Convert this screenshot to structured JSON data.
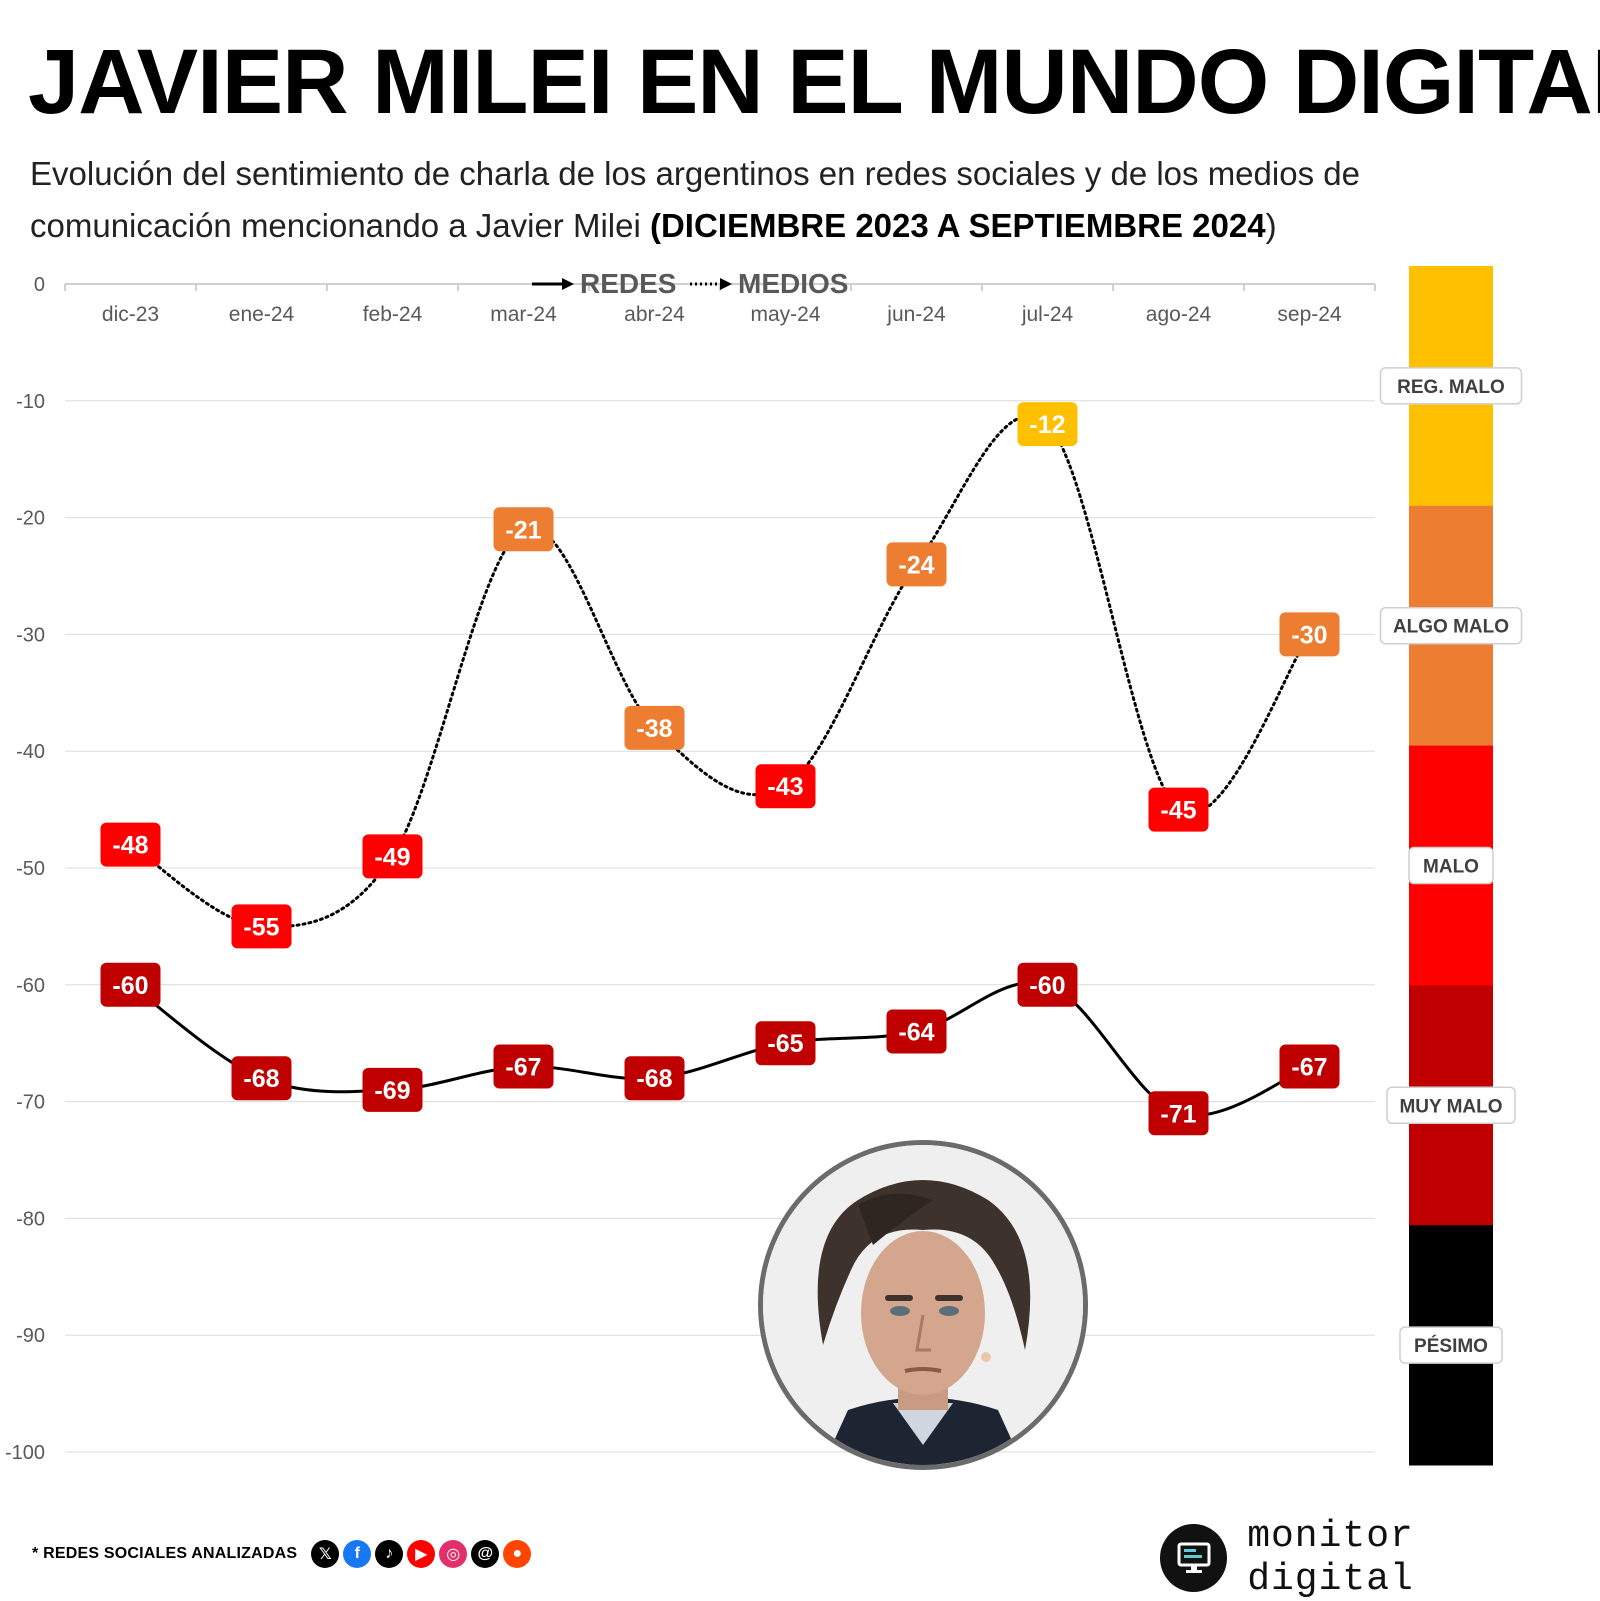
{
  "header": {
    "title": "JAVIER MILEI EN EL MUNDO DIGITAL",
    "subtitle_main": "Evolución del sentimiento de charla de los argentinos en redes sociales y de los medios de comunicación mencionando a Javier Milei ",
    "subtitle_bold": "(DICIEMBRE 2023 A SEPTIEMBRE 2024",
    "subtitle_end": ")"
  },
  "chart_data": {
    "type": "line",
    "title": "JAVIER MILEI EN EL MUNDO DIGITAL",
    "categories": [
      "dic-23",
      "ene-24",
      "feb-24",
      "mar-24",
      "abr-24",
      "may-24",
      "jun-24",
      "jul-24",
      "ago-24",
      "sep-24"
    ],
    "series": [
      {
        "name": "REDES",
        "style": "solid",
        "values": [
          -60,
          -68,
          -69,
          -67,
          -68,
          -65,
          -64,
          -60,
          -71,
          -67
        ]
      },
      {
        "name": "MEDIOS",
        "style": "dotted",
        "values": [
          -48,
          -55,
          -49,
          -21,
          -38,
          -43,
          -24,
          -12,
          -45,
          -30
        ]
      }
    ],
    "ylim": [
      -100,
      0
    ],
    "yticks": [
      0,
      -10,
      -20,
      -30,
      -40,
      -50,
      -60,
      -70,
      -80,
      -90,
      -100
    ],
    "xlabel": "",
    "ylabel": "",
    "grid": true,
    "legend_position": "top-center",
    "scale": [
      {
        "label": "REG. MALO",
        "from": 0,
        "to": -20,
        "color": "#FFC000"
      },
      {
        "label": "ALGO MALO",
        "from": -20,
        "to": -40,
        "color": "#ED7D31"
      },
      {
        "label": "MALO",
        "from": -40,
        "to": -60,
        "color": "#FF0000"
      },
      {
        "label": "MUY MALO",
        "from": -60,
        "to": -80,
        "color": "#C00000"
      },
      {
        "label": "PÉSIMO",
        "from": -80,
        "to": -100,
        "color": "#000000"
      }
    ]
  },
  "footer": {
    "networks_label": "* REDES SOCIALES ANALIZADAS",
    "networks": [
      {
        "icon": "x-icon",
        "glyph": "𝕏",
        "color": "#000000"
      },
      {
        "icon": "facebook-icon",
        "glyph": "f",
        "color": "#1877F2"
      },
      {
        "icon": "tiktok-icon",
        "glyph": "♪",
        "color": "#000000"
      },
      {
        "icon": "youtube-icon",
        "glyph": "▶",
        "color": "#FF0000"
      },
      {
        "icon": "instagram-icon",
        "glyph": "◎",
        "color": "#E1306C"
      },
      {
        "icon": "threads-icon",
        "glyph": "@",
        "color": "#000000"
      },
      {
        "icon": "reddit-icon",
        "glyph": "●",
        "color": "#FF4500"
      }
    ],
    "brand": "monitor digital"
  }
}
